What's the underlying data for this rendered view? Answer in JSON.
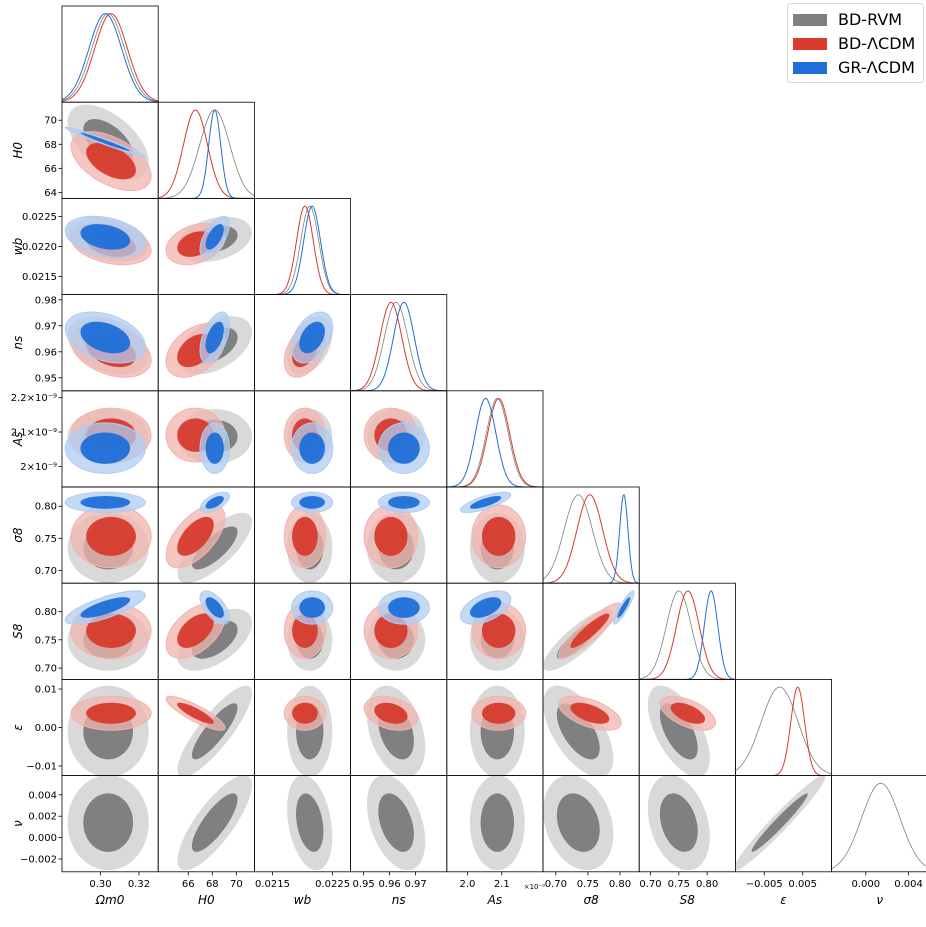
{
  "legend": {
    "items": [
      {
        "label": "BD-RVM",
        "color": "#808080"
      },
      {
        "label": "BD-ΛCDM",
        "color": "#d73b2e"
      },
      {
        "label": "GR-ΛCDM",
        "color": "#1f6fd8"
      }
    ]
  },
  "chart_data": {
    "type": "corner",
    "params": [
      {
        "key": "Om",
        "label": "Ω_m^0",
        "range": [
          0.28,
          0.33
        ],
        "ticks": [
          0.3,
          0.32
        ],
        "ticklabels": [
          "0.30",
          "0.32"
        ]
      },
      {
        "key": "H0",
        "label": "H_0",
        "range": [
          63.5,
          71.5
        ],
        "ticks": [
          64,
          66,
          68,
          70
        ],
        "ticklabels": [
          "64",
          "66",
          "68",
          "70"
        ],
        "xticks": [
          66,
          68,
          70
        ],
        "xticklabels": [
          "66",
          "68",
          "70"
        ]
      },
      {
        "key": "wb",
        "label": "w_b",
        "range": [
          0.0212,
          0.0228
        ],
        "ticks": [
          0.0215,
          0.022,
          0.0225
        ],
        "ticklabels": [
          "0.0215",
          "0.0220",
          "0.0225"
        ],
        "xticks": [
          0.0215,
          0.0225
        ],
        "xticklabels": [
          "0.0215",
          "0.0225"
        ]
      },
      {
        "key": "ns",
        "label": "n_s",
        "range": [
          0.945,
          0.982
        ],
        "ticks": [
          0.95,
          0.96,
          0.97,
          0.98
        ],
        "ticklabels": [
          "0.95",
          "0.96",
          "0.97",
          "0.98"
        ],
        "xticks": [
          0.95,
          0.96,
          0.97
        ],
        "xticklabels": [
          "0.95",
          "0.96",
          "0.97"
        ]
      },
      {
        "key": "As",
        "label": "A_s",
        "range": [
          1.94,
          2.22
        ],
        "ticks": [
          2.0,
          2.1,
          2.2
        ],
        "ticklabels": [
          "2×10⁻⁹",
          "2.1×10⁻⁹",
          "2.2×10⁻⁹"
        ],
        "xticks": [
          2.0,
          2.1
        ],
        "xticklabels": [
          "2.0",
          "2.1"
        ],
        "offset": "×10⁻⁹"
      },
      {
        "key": "s8",
        "label": "σ_8",
        "range": [
          0.68,
          0.83
        ],
        "ticks": [
          0.7,
          0.75,
          0.8
        ],
        "ticklabels": [
          "0.70",
          "0.75",
          "0.80"
        ]
      },
      {
        "key": "S8",
        "label": "S_8",
        "range": [
          0.68,
          0.85
        ],
        "ticks": [
          0.7,
          0.75,
          0.8
        ],
        "ticklabels": [
          "0.70",
          "0.75",
          "0.80"
        ]
      },
      {
        "key": "eps",
        "label": "ε",
        "range": [
          -0.0125,
          0.0125
        ],
        "ticks": [
          -0.01,
          0.0,
          0.01
        ],
        "ticklabels": [
          "−0.01",
          "0.00",
          "0.01"
        ],
        "xticks": [
          -0.005,
          0.005
        ],
        "xticklabels": [
          "−0.005",
          "0.005"
        ]
      },
      {
        "key": "nu",
        "label": "ν",
        "range": [
          -0.0032,
          0.0058
        ],
        "ticks": [
          -0.002,
          0.0,
          0.002,
          0.004
        ],
        "ticklabels": [
          "−0.002",
          "0.000",
          "0.002",
          "0.004"
        ],
        "xticks": [
          0.0,
          0.004
        ],
        "xticklabels": [
          "0.000",
          "0.004"
        ]
      }
    ],
    "series": [
      {
        "name": "BD-RVM",
        "color": "#808080",
        "light": "#d9d9d9",
        "dark": "#808080",
        "params": [
          "Om",
          "H0",
          "wb",
          "ns",
          "As",
          "s8",
          "S8",
          "eps",
          "nu"
        ],
        "mean": [
          0.304,
          68.2,
          0.02212,
          0.9625,
          2.087,
          0.735,
          0.75,
          -0.001,
          0.0014
        ],
        "sigma": [
          0.0085,
          1.25,
          0.00015,
          0.0045,
          0.032,
          0.022,
          0.022,
          0.0048,
          0.0018
        ],
        "corr": {
          "Om-H0": -0.55,
          "Om-ns": -0.35,
          "H0-wb": 0.3,
          "H0-ns": 0.45,
          "H0-s8": 0.75,
          "H0-S8": 0.55,
          "H0-eps": 0.85,
          "H0-nu": 0.8,
          "wb-ns": 0.4,
          "ns-eps": -0.35,
          "ns-nu": -0.4,
          "s8-S8": 0.85,
          "s8-eps": -0.6,
          "S8-eps": -0.6,
          "eps-nu": 0.97,
          "s8-nu": -0.25,
          "S8-nu": -0.3,
          "Om-wb": -0.3,
          "wb-nu": -0.3
        }
      },
      {
        "name": "BD-ΛCDM",
        "color": "#d73b2e",
        "light": "#f0b4ad",
        "dark": "#d73b2e",
        "params": [
          "Om",
          "H0",
          "wb",
          "ns",
          "As",
          "s8",
          "S8",
          "eps"
        ],
        "mean": [
          0.3055,
          66.6,
          0.02204,
          0.9605,
          2.091,
          0.753,
          0.766,
          0.0037
        ],
        "sigma": [
          0.0085,
          1.0,
          0.00014,
          0.0042,
          0.032,
          0.02,
          0.02,
          0.0018
        ],
        "corr": {
          "Om-H0": -0.5,
          "Om-ns": -0.35,
          "H0-wb": 0.3,
          "H0-ns": 0.4,
          "H0-s8": 0.6,
          "H0-S8": 0.5,
          "H0-eps": -0.85,
          "wb-ns": 0.4,
          "ns-eps": -0.3,
          "s8-S8": 0.9,
          "s8-eps": -0.55,
          "S8-eps": -0.55,
          "Om-wb": -0.3
        }
      },
      {
        "name": "GR-ΛCDM",
        "color": "#1f6fd8",
        "light": "#b0ccf2",
        "dark": "#1f6fd8",
        "params": [
          "Om",
          "H0",
          "wb",
          "ns",
          "As",
          "s8",
          "S8"
        ],
        "mean": [
          0.3025,
          68.2,
          0.02216,
          0.9655,
          2.053,
          0.806,
          0.807
        ],
        "sigma": [
          0.0085,
          0.5,
          0.00014,
          0.004,
          0.03,
          0.0065,
          0.012
        ],
        "corr": {
          "Om-H0": -0.98,
          "Om-ns": -0.35,
          "H0-wb": 0.6,
          "H0-ns": 0.5,
          "H0-s8": 0.6,
          "H0-S8": -0.6,
          "wb-ns": 0.4,
          "As-s8": 0.75,
          "As-S8": 0.5,
          "s8-S8": 0.9,
          "Om-S8": 0.75,
          "Om-wb": -0.3
        }
      }
    ],
    "grid": false,
    "legend_position": "top-right"
  }
}
